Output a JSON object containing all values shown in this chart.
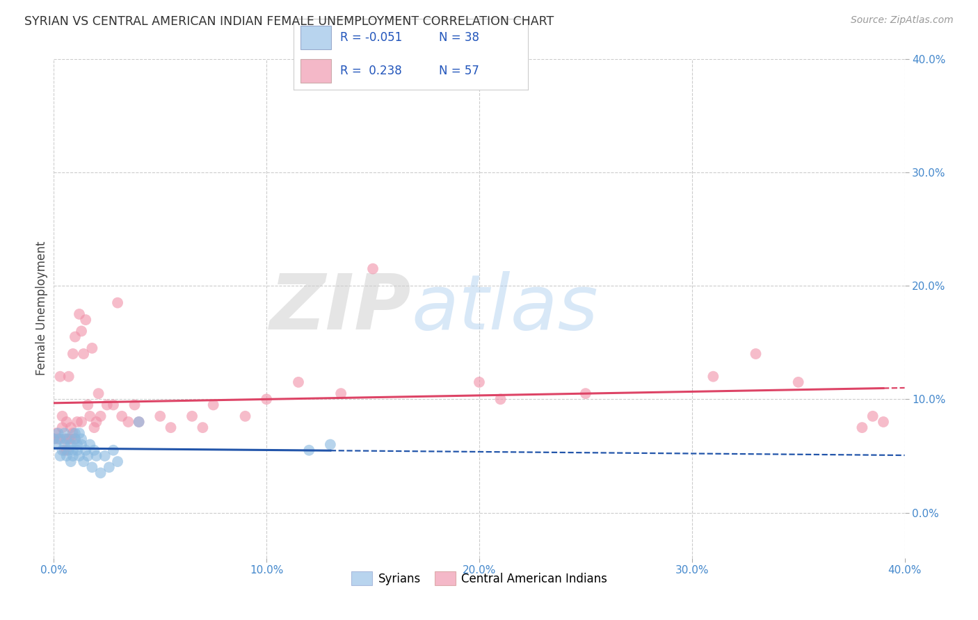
{
  "title": "SYRIAN VS CENTRAL AMERICAN INDIAN FEMALE UNEMPLOYMENT CORRELATION CHART",
  "source": "Source: ZipAtlas.com",
  "ylabel": "Female Unemployment",
  "watermark_zip": "ZIP",
  "watermark_atlas": "atlas",
  "legend_syrian": {
    "R": "-0.051",
    "N": "38",
    "color": "#b8d4ee"
  },
  "legend_cai": {
    "R": "0.238",
    "N": "57",
    "color": "#f4b8c8"
  },
  "syrian_color": "#88b8e0",
  "cai_color": "#f090a8",
  "syrian_line_color": "#2255aa",
  "cai_line_color": "#dd4466",
  "background": "#ffffff",
  "grid_color": "#cccccc",
  "xlim": [
    0.0,
    0.4
  ],
  "ylim": [
    -0.04,
    0.4
  ],
  "yticks": [
    0.0,
    0.1,
    0.2,
    0.3,
    0.4
  ],
  "xticks": [
    0.0,
    0.1,
    0.2,
    0.3,
    0.4
  ],
  "syrian_x": [
    0.0,
    0.001,
    0.002,
    0.003,
    0.003,
    0.004,
    0.005,
    0.005,
    0.006,
    0.006,
    0.007,
    0.008,
    0.008,
    0.009,
    0.009,
    0.01,
    0.01,
    0.011,
    0.011,
    0.012,
    0.012,
    0.013,
    0.013,
    0.014,
    0.015,
    0.016,
    0.017,
    0.018,
    0.019,
    0.02,
    0.022,
    0.024,
    0.026,
    0.028,
    0.03,
    0.04,
    0.12,
    0.13
  ],
  "syrian_y": [
    0.065,
    0.06,
    0.07,
    0.05,
    0.065,
    0.055,
    0.06,
    0.07,
    0.05,
    0.065,
    0.055,
    0.045,
    0.06,
    0.055,
    0.05,
    0.07,
    0.065,
    0.06,
    0.055,
    0.05,
    0.07,
    0.065,
    0.06,
    0.045,
    0.055,
    0.05,
    0.06,
    0.04,
    0.055,
    0.05,
    0.035,
    0.05,
    0.04,
    0.055,
    0.045,
    0.08,
    0.055,
    0.06
  ],
  "cai_x": [
    0.0,
    0.001,
    0.002,
    0.003,
    0.004,
    0.004,
    0.005,
    0.005,
    0.006,
    0.006,
    0.007,
    0.007,
    0.008,
    0.008,
    0.009,
    0.009,
    0.01,
    0.01,
    0.011,
    0.012,
    0.013,
    0.013,
    0.014,
    0.015,
    0.016,
    0.017,
    0.018,
    0.019,
    0.02,
    0.021,
    0.022,
    0.025,
    0.028,
    0.03,
    0.032,
    0.035,
    0.038,
    0.04,
    0.05,
    0.055,
    0.065,
    0.07,
    0.075,
    0.09,
    0.1,
    0.115,
    0.135,
    0.15,
    0.2,
    0.21,
    0.25,
    0.31,
    0.33,
    0.35,
    0.38,
    0.385,
    0.39
  ],
  "cai_y": [
    0.065,
    0.07,
    0.065,
    0.12,
    0.075,
    0.085,
    0.055,
    0.065,
    0.08,
    0.055,
    0.065,
    0.12,
    0.075,
    0.065,
    0.14,
    0.07,
    0.155,
    0.065,
    0.08,
    0.175,
    0.08,
    0.16,
    0.14,
    0.17,
    0.095,
    0.085,
    0.145,
    0.075,
    0.08,
    0.105,
    0.085,
    0.095,
    0.095,
    0.185,
    0.085,
    0.08,
    0.095,
    0.08,
    0.085,
    0.075,
    0.085,
    0.075,
    0.095,
    0.085,
    0.1,
    0.115,
    0.105,
    0.215,
    0.115,
    0.1,
    0.105,
    0.12,
    0.14,
    0.115,
    0.075,
    0.085,
    0.08
  ]
}
